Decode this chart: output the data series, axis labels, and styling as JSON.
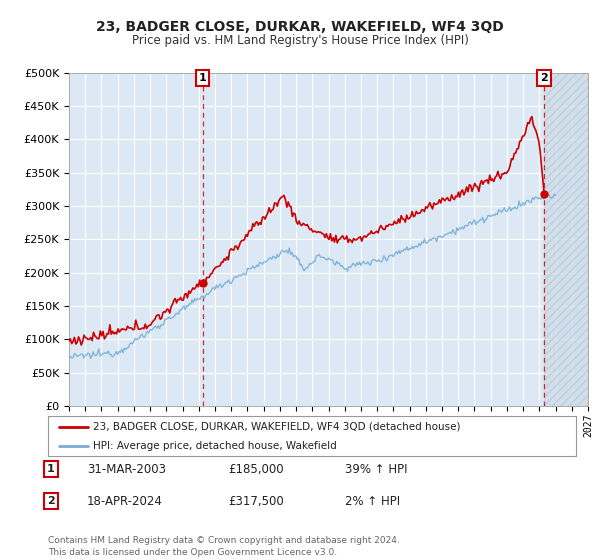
{
  "title": "23, BADGER CLOSE, DURKAR, WAKEFIELD, WF4 3QD",
  "subtitle": "Price paid vs. HM Land Registry's House Price Index (HPI)",
  "ylim": [
    0,
    500000
  ],
  "xlim_start": 1995.0,
  "xlim_end": 2027.0,
  "bg_color": "#dce9f5",
  "grid_color": "#ffffff",
  "hatch_color": "#c8d8e8",
  "legend_label_red": "23, BADGER CLOSE, DURKAR, WAKEFIELD, WF4 3QD (detached house)",
  "legend_label_blue": "HPI: Average price, detached house, Wakefield",
  "sale1_date_num": 2003.24,
  "sale1_price": 185000,
  "sale2_date_num": 2024.29,
  "sale2_price": 317500,
  "annotation1_date": "31-MAR-2003",
  "annotation1_price": "£185,000",
  "annotation1_hpi": "39% ↑ HPI",
  "annotation2_date": "18-APR-2024",
  "annotation2_price": "£317,500",
  "annotation2_hpi": "2% ↑ HPI",
  "footer": "Contains HM Land Registry data © Crown copyright and database right 2024.\nThis data is licensed under the Open Government Licence v3.0.",
  "red_color": "#cc0000",
  "blue_color": "#7aaed6",
  "fig_bg": "#ffffff"
}
